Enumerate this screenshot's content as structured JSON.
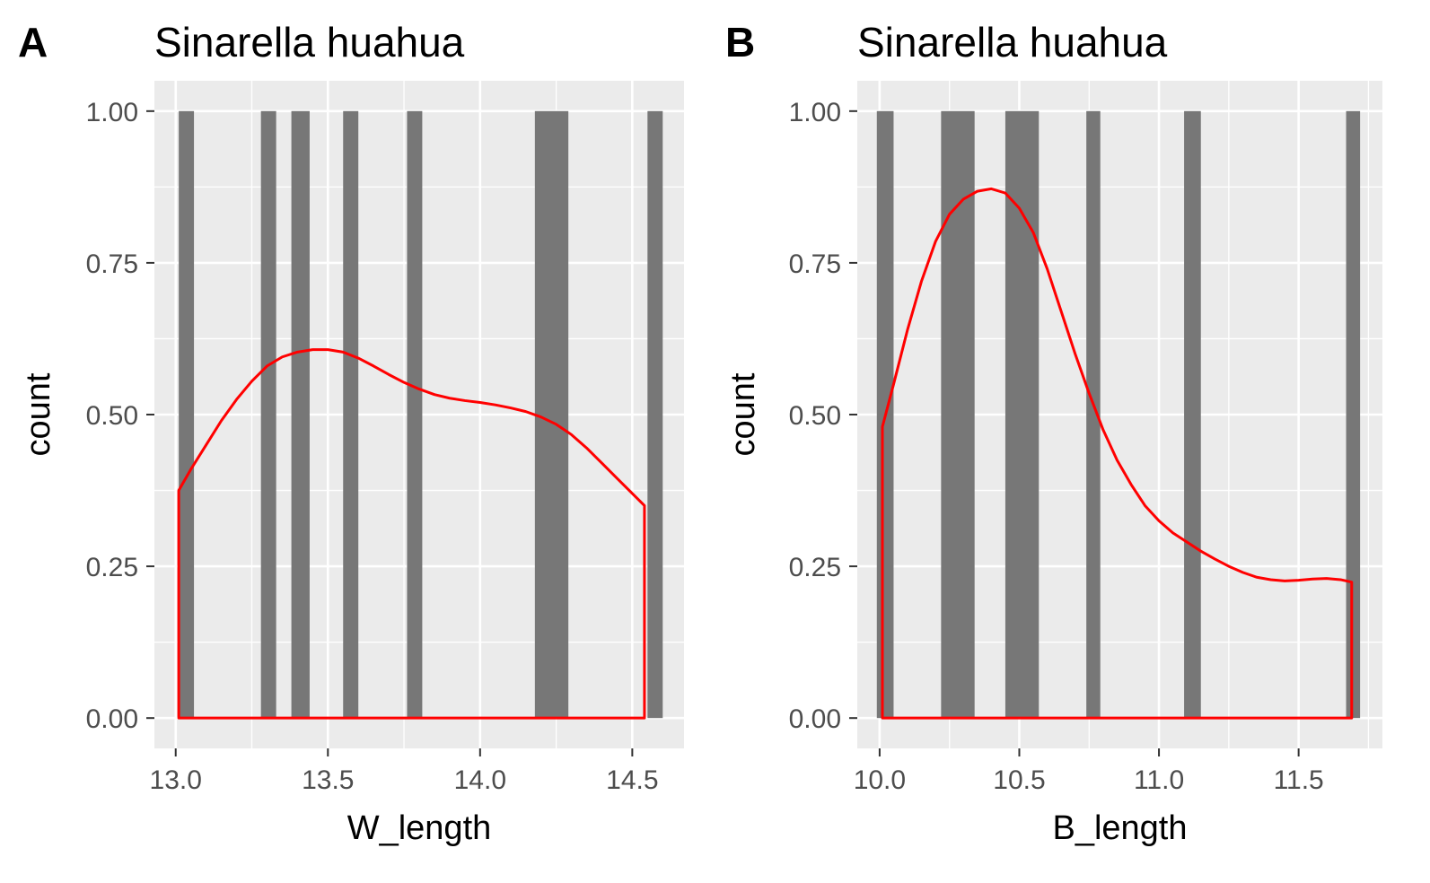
{
  "chart_data": [
    {
      "type": "bar",
      "panel_tag": "A",
      "title": "Sinarella huahua",
      "xlabel": "W_length",
      "ylabel": "count",
      "xlim": [
        12.93,
        14.67
      ],
      "ylim": [
        -0.05,
        1.05
      ],
      "x_ticks": [
        13.0,
        13.5,
        14.0,
        14.5
      ],
      "x_tick_labels": [
        "13.0",
        "13.5",
        "14.0",
        "14.5"
      ],
      "y_ticks": [
        0,
        0.25,
        0.5,
        0.75,
        1.0
      ],
      "y_tick_labels": [
        "0.00",
        "0.25",
        "0.50",
        "0.75",
        "1.00"
      ],
      "grid": true,
      "bar_color": "#777777",
      "density_color": "#ff0000",
      "bars": [
        {
          "x0": 13.01,
          "x1": 13.06,
          "count": 1
        },
        {
          "x0": 13.28,
          "x1": 13.33,
          "count": 1
        },
        {
          "x0": 13.38,
          "x1": 13.44,
          "count": 1
        },
        {
          "x0": 13.55,
          "x1": 13.6,
          "count": 1
        },
        {
          "x0": 13.76,
          "x1": 13.81,
          "count": 1
        },
        {
          "x0": 14.18,
          "x1": 14.29,
          "count": 1
        },
        {
          "x0": 14.55,
          "x1": 14.6,
          "count": 1
        }
      ],
      "density": {
        "x": [
          13.01,
          13.05,
          13.1,
          13.15,
          13.2,
          13.25,
          13.3,
          13.35,
          13.4,
          13.45,
          13.5,
          13.55,
          13.6,
          13.65,
          13.7,
          13.75,
          13.8,
          13.85,
          13.9,
          13.95,
          14.0,
          14.05,
          14.1,
          14.15,
          14.2,
          14.25,
          14.3,
          14.35,
          14.4,
          14.45,
          14.5,
          14.54
        ],
        "y": [
          0.375,
          0.41,
          0.45,
          0.49,
          0.525,
          0.555,
          0.58,
          0.595,
          0.603,
          0.607,
          0.607,
          0.603,
          0.593,
          0.58,
          0.566,
          0.553,
          0.542,
          0.533,
          0.527,
          0.523,
          0.52,
          0.516,
          0.511,
          0.505,
          0.496,
          0.484,
          0.467,
          0.445,
          0.42,
          0.395,
          0.37,
          0.35
        ]
      }
    },
    {
      "type": "bar",
      "panel_tag": "B",
      "title": "Sinarella huahua",
      "xlabel": "B_length",
      "ylabel": "count",
      "xlim": [
        9.92,
        11.8
      ],
      "ylim": [
        -0.05,
        1.05
      ],
      "x_ticks": [
        10.0,
        10.5,
        11.0,
        11.5
      ],
      "x_tick_labels": [
        "10.0",
        "10.5",
        "11.0",
        "11.5"
      ],
      "y_ticks": [
        0,
        0.25,
        0.5,
        0.75,
        1.0
      ],
      "y_tick_labels": [
        "0.00",
        "0.25",
        "0.50",
        "0.75",
        "1.00"
      ],
      "grid": true,
      "bar_color": "#777777",
      "density_color": "#ff0000",
      "bars": [
        {
          "x0": 9.99,
          "x1": 10.05,
          "count": 1
        },
        {
          "x0": 10.22,
          "x1": 10.34,
          "count": 1
        },
        {
          "x0": 10.45,
          "x1": 10.57,
          "count": 1
        },
        {
          "x0": 10.74,
          "x1": 10.79,
          "count": 1
        },
        {
          "x0": 11.09,
          "x1": 11.15,
          "count": 1
        },
        {
          "x0": 11.67,
          "x1": 11.72,
          "count": 1
        }
      ],
      "density": {
        "x": [
          10.01,
          10.05,
          10.1,
          10.15,
          10.2,
          10.25,
          10.3,
          10.35,
          10.4,
          10.45,
          10.5,
          10.55,
          10.6,
          10.65,
          10.7,
          10.75,
          10.8,
          10.85,
          10.9,
          10.95,
          11.0,
          11.05,
          11.1,
          11.15,
          11.2,
          11.25,
          11.3,
          11.35,
          11.4,
          11.45,
          11.5,
          11.55,
          11.6,
          11.65,
          11.69
        ],
        "y": [
          0.48,
          0.55,
          0.64,
          0.72,
          0.785,
          0.83,
          0.855,
          0.868,
          0.872,
          0.865,
          0.84,
          0.8,
          0.74,
          0.67,
          0.6,
          0.535,
          0.475,
          0.425,
          0.385,
          0.35,
          0.325,
          0.305,
          0.29,
          0.275,
          0.262,
          0.25,
          0.24,
          0.232,
          0.228,
          0.226,
          0.227,
          0.229,
          0.23,
          0.228,
          0.224
        ]
      }
    }
  ]
}
